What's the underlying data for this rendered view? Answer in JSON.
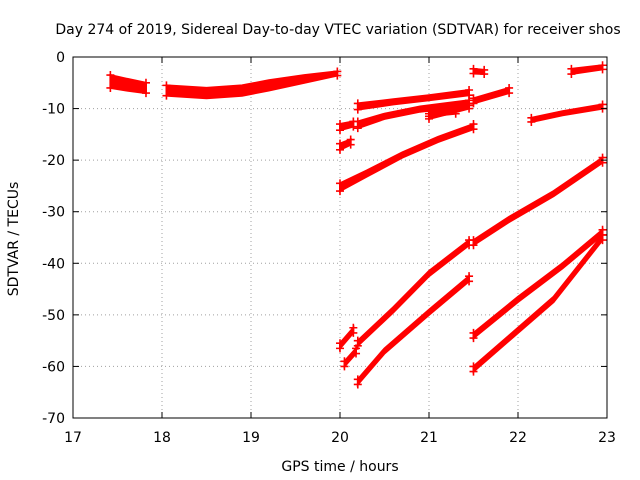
{
  "chart_data": {
    "type": "scatter",
    "title": "Day 274 of 2019, Sidereal Day-to-day VTEC variation (SDTVAR) for receiver shos",
    "xlabel": "GPS time / hours",
    "ylabel": "SDTVAR / TECUs",
    "xlim": [
      17,
      23
    ],
    "ylim": [
      -70,
      0
    ],
    "x_ticks": [
      17,
      18,
      19,
      20,
      21,
      22,
      23
    ],
    "y_ticks": [
      0,
      -10,
      -20,
      -30,
      -40,
      -50,
      -60,
      -70
    ],
    "x_tick_labels": [
      "17",
      "18",
      "19",
      "20",
      "21",
      "22",
      "23"
    ],
    "y_tick_labels": [
      "0",
      "-10",
      "-20",
      "-30",
      "-40",
      "-50",
      "-60",
      "-70"
    ],
    "grid": "dotted",
    "marker_color": "#ff0000",
    "series": [
      {
        "name": "arc1",
        "band": [
          [
            17.42,
            -3.5,
            -6.0
          ],
          [
            17.6,
            -4.2,
            -6.5
          ],
          [
            17.82,
            -5.0,
            -7.0
          ]
        ]
      },
      {
        "name": "arc2",
        "band": [
          [
            18.05,
            -5.5,
            -7.5
          ],
          [
            18.5,
            -6.0,
            -8.0
          ],
          [
            18.9,
            -5.5,
            -7.5
          ],
          [
            19.2,
            -4.5,
            -6.5
          ],
          [
            19.6,
            -3.5,
            -5.0
          ],
          [
            19.97,
            -2.8,
            -3.6
          ]
        ]
      },
      {
        "name": "arc3",
        "band": [
          [
            20.0,
            -13.0,
            -14.2
          ],
          [
            20.15,
            -12.5,
            -13.5
          ]
        ]
      },
      {
        "name": "arc4",
        "band": [
          [
            20.0,
            -16.8,
            -18.0
          ],
          [
            20.12,
            -16.0,
            -17.0
          ]
        ]
      },
      {
        "name": "arc5",
        "band": [
          [
            20.2,
            -9.0,
            -10.2
          ],
          [
            20.6,
            -8.2,
            -9.2
          ],
          [
            21.0,
            -7.4,
            -8.4
          ],
          [
            21.45,
            -6.4,
            -7.4
          ]
        ]
      },
      {
        "name": "arc6",
        "band": [
          [
            20.2,
            -12.5,
            -13.8
          ],
          [
            20.5,
            -11.0,
            -12.0
          ],
          [
            20.9,
            -9.6,
            -10.6
          ],
          [
            21.45,
            -8.4,
            -9.4
          ]
        ]
      },
      {
        "name": "arc7",
        "band": [
          [
            21.0,
            -10.5,
            -11.5
          ],
          [
            21.3,
            -10.0,
            -11.0
          ]
        ]
      },
      {
        "name": "arc8",
        "band": [
          [
            21.0,
            -11.0,
            -12.0
          ],
          [
            21.45,
            -9.0,
            -10.0
          ]
        ]
      },
      {
        "name": "arc9",
        "band": [
          [
            21.5,
            -2.3,
            -3.2
          ],
          [
            21.62,
            -2.5,
            -3.3
          ]
        ]
      },
      {
        "name": "arc10",
        "band": [
          [
            21.5,
            -8.0,
            -9.0
          ],
          [
            21.9,
            -6.0,
            -7.0
          ]
        ]
      },
      {
        "name": "arc11",
        "band": [
          [
            22.6,
            -2.3,
            -3.3
          ],
          [
            22.95,
            -1.6,
            -2.4
          ]
        ]
      },
      {
        "name": "arc12",
        "band": [
          [
            22.15,
            -11.8,
            -12.6
          ],
          [
            22.5,
            -10.5,
            -11.3
          ],
          [
            22.95,
            -9.2,
            -10.0
          ]
        ]
      },
      {
        "name": "arc13",
        "band": [
          [
            20.0,
            -24.5,
            -26.0
          ],
          [
            20.3,
            -22.0,
            -23.2
          ],
          [
            20.7,
            -18.5,
            -19.5
          ],
          [
            21.1,
            -15.5,
            -16.5
          ],
          [
            21.5,
            -13.0,
            -14.0
          ]
        ]
      },
      {
        "name": "arc14",
        "band": [
          [
            21.5,
            -35.5,
            -36.5
          ],
          [
            21.9,
            -31.0,
            -32.0
          ],
          [
            22.4,
            -26.0,
            -27.0
          ],
          [
            22.95,
            -19.5,
            -20.5
          ]
        ]
      },
      {
        "name": "arc15",
        "band": [
          [
            20.0,
            -55.5,
            -56.5
          ],
          [
            20.15,
            -52.5,
            -53.5
          ]
        ]
      },
      {
        "name": "arc16",
        "band": [
          [
            20.05,
            -59.0,
            -60.0
          ],
          [
            20.18,
            -56.5,
            -57.5
          ]
        ]
      },
      {
        "name": "arc17",
        "band": [
          [
            20.2,
            -55.0,
            -56.0
          ],
          [
            20.6,
            -48.5,
            -49.5
          ],
          [
            21.0,
            -41.5,
            -42.5
          ],
          [
            21.45,
            -35.5,
            -36.5
          ]
        ]
      },
      {
        "name": "arc18",
        "band": [
          [
            20.2,
            -62.5,
            -63.5
          ],
          [
            20.5,
            -56.5,
            -57.5
          ],
          [
            21.0,
            -49.0,
            -50.0
          ],
          [
            21.45,
            -42.5,
            -43.5
          ]
        ]
      },
      {
        "name": "arc19",
        "band": [
          [
            21.5,
            -53.5,
            -54.5
          ],
          [
            22.0,
            -46.5,
            -47.5
          ],
          [
            22.5,
            -40.0,
            -41.0
          ],
          [
            22.95,
            -33.5,
            -34.5
          ]
        ]
      },
      {
        "name": "arc20",
        "band": [
          [
            21.5,
            -60.0,
            -61.0
          ],
          [
            21.9,
            -54.0,
            -55.0
          ],
          [
            22.4,
            -46.5,
            -47.5
          ],
          [
            22.95,
            -34.5,
            -35.5
          ]
        ]
      }
    ]
  }
}
